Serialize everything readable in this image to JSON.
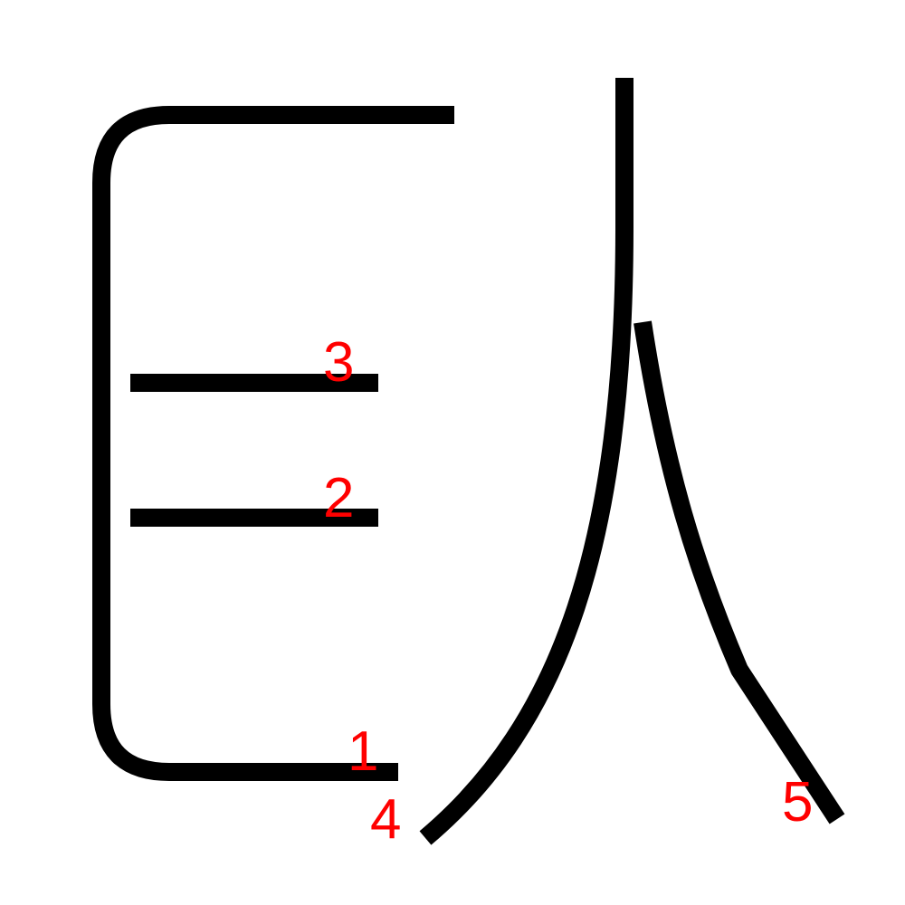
{
  "colors": {
    "stroke": "#000000",
    "stroke_number": "#ff0000",
    "background": "#ffffff"
  },
  "strokes": [
    {
      "order": 1,
      "label": "1"
    },
    {
      "order": 2,
      "label": "2"
    },
    {
      "order": 3,
      "label": "3"
    },
    {
      "order": 4,
      "label": "4"
    },
    {
      "order": 5,
      "label": "5"
    }
  ]
}
